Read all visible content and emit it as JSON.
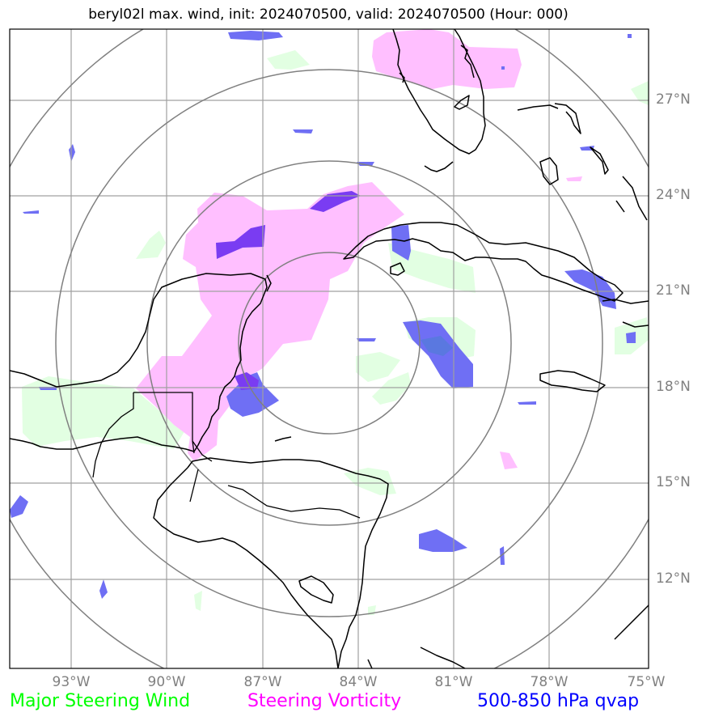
{
  "title": "beryl02l max. wind, init: 2024070500, valid: 2024070500 (Hour: 000)",
  "lat_ticks": [
    "27°N",
    "24°N",
    "21°N",
    "18°N",
    "15°N",
    "12°N"
  ],
  "lon_ticks": [
    "93°W",
    "90°W",
    "87°W",
    "84°W",
    "81°W",
    "78°W",
    "75°W"
  ],
  "legend": [
    {
      "label": "Major Steering Wind",
      "color": "#00ff00"
    },
    {
      "label": "Steering Vorticity",
      "color": "#ff00ff"
    },
    {
      "label": "500-850 hPa qvap",
      "color": "#0000ff"
    }
  ],
  "colors": {
    "steering_wind_fill": "#e2ffe2",
    "vorticity_fill": "#ffbfff",
    "qvap_fill": "#6f6ff4",
    "qvap_dark_fill": "#7a3cf2",
    "coastline": "#000000",
    "gridline": "#a0a0a0",
    "range_ring": "#808080",
    "tick_label": "#808080"
  }
}
